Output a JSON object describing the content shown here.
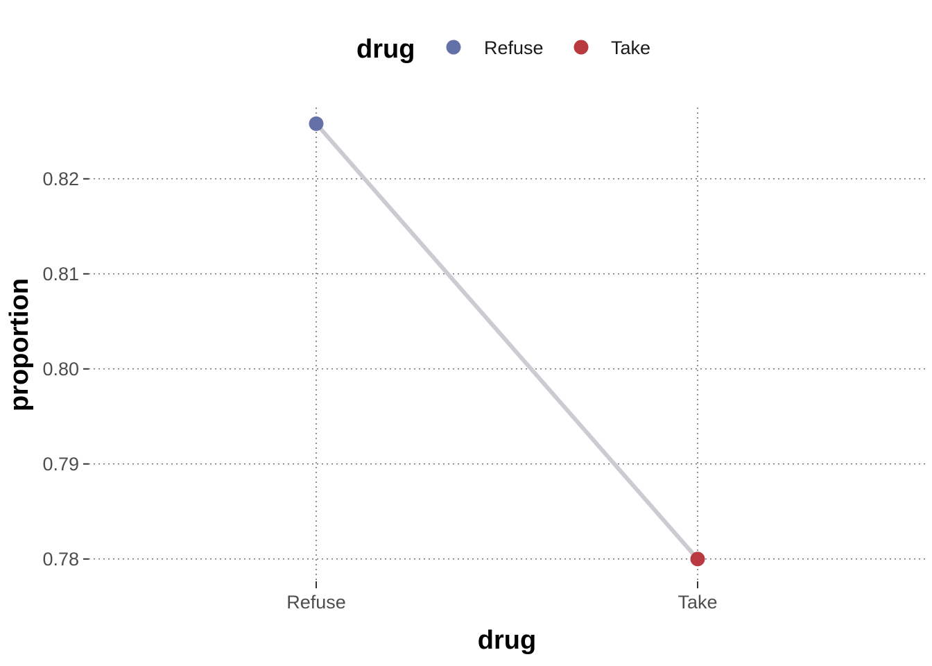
{
  "chart_data": {
    "type": "line",
    "xlabel": "drug",
    "ylabel": "proportion",
    "categories": [
      "Refuse",
      "Take"
    ],
    "values": [
      0.8258,
      0.78
    ],
    "ylim": [
      0.7775,
      0.8275
    ],
    "yticks": [
      0.78,
      0.79,
      0.8,
      0.81,
      0.82
    ],
    "ytick_labels": [
      "0.78",
      "0.79",
      "0.80",
      "0.81",
      "0.82"
    ],
    "grid": true,
    "legend": {
      "title": "drug",
      "placement": "top",
      "entries": [
        {
          "label": "Refuse",
          "color": "#6470a8"
        },
        {
          "label": "Take",
          "color": "#b8393f"
        }
      ]
    },
    "line_color": "#cbcbd1"
  }
}
